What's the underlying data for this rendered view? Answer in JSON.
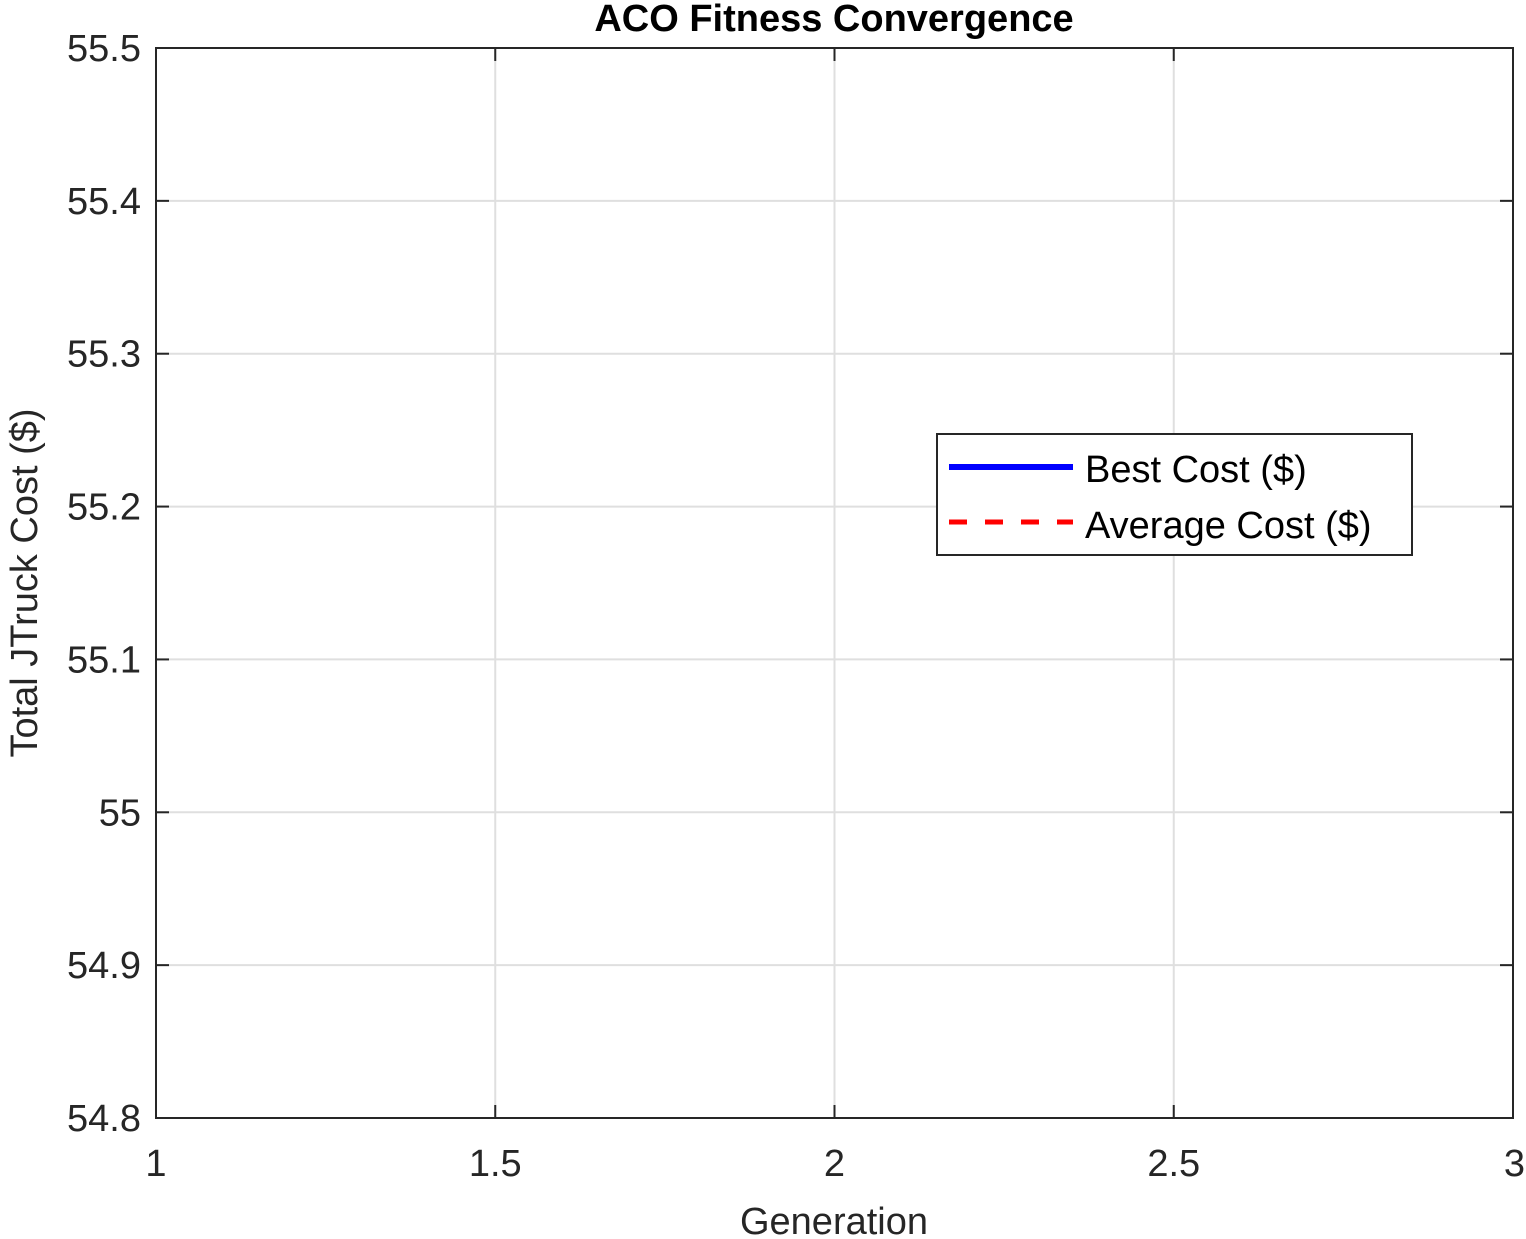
{
  "chart_data": {
    "type": "line",
    "title": "ACO Fitness Convergence",
    "xlabel": "Generation",
    "ylabel": "Total JTruck Cost ($)",
    "xlim": [
      1,
      3
    ],
    "ylim": [
      54.8,
      55.5
    ],
    "xticks": [
      1,
      1.5,
      2,
      2.5,
      3
    ],
    "xtick_labels": [
      "1",
      "1.5",
      "2",
      "2.5",
      "3"
    ],
    "yticks": [
      54.8,
      54.9,
      55.0,
      55.1,
      55.2,
      55.3,
      55.4,
      55.5
    ],
    "ytick_labels": [
      "54.8",
      "54.9",
      "55",
      "55.1",
      "55.2",
      "55.3",
      "55.4",
      "55.5"
    ],
    "grid": true,
    "legend_position": "right",
    "series": [
      {
        "name": "Best Cost ($)",
        "color": "#0000ff",
        "style": "solid",
        "x": [],
        "y": []
      },
      {
        "name": "Average Cost ($)",
        "color": "#ff0000",
        "style": "dashed",
        "x": [],
        "y": []
      }
    ]
  }
}
